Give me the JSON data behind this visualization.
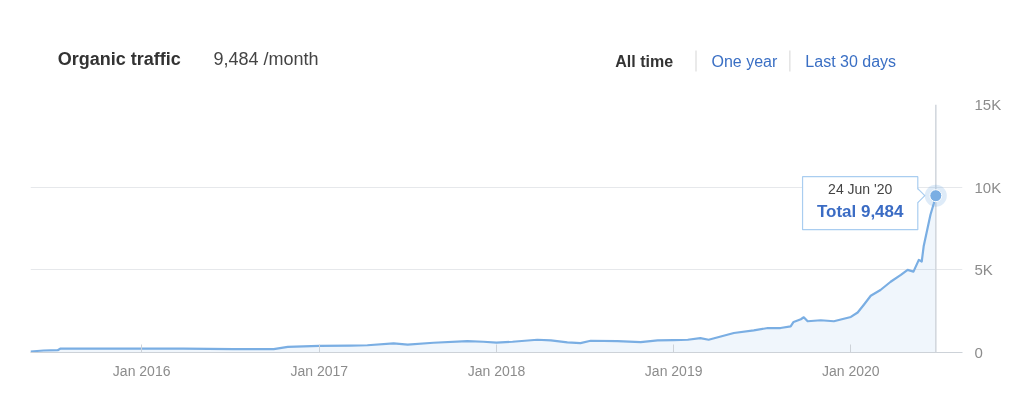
{
  "chart_data": {
    "type": "area",
    "title": "Organic traffic",
    "subtitle": "9,484 /month",
    "annotations": [
      "All time",
      "One year",
      "Last 30 days",
      "24 Jun '20",
      {
        "text": "Total 9,484",
        "x": "2020-06-24",
        "y": 9484
      }
    ],
    "x": [
      "2015-05-17",
      "2015-06-13",
      "2015-07-12",
      "2015-07-18",
      "2015-10-09",
      "2016-01-01",
      "2016-03-27",
      "2016-07-08",
      "2016-09-29",
      "2016-10-28",
      "2017-01-01",
      "2017-03-06",
      "2017-04-10",
      "2017-06-03",
      "2017-07-02",
      "2017-08-24",
      "2017-11-02",
      "2017-12-05",
      "2018-01-01",
      "2018-02-03",
      "2018-03-26",
      "2018-04-23",
      "2018-05-27",
      "2018-06-23",
      "2018-07-14",
      "2018-09-07",
      "2018-10-25",
      "2018-11-29",
      "2019-01-01",
      "2019-01-30",
      "2019-02-25",
      "2019-03-14",
      "2019-04-08",
      "2019-05-05",
      "2019-06-15",
      "2019-07-14",
      "2019-08-09",
      "2019-08-30",
      "2019-09-05",
      "2019-09-20",
      "2019-09-26",
      "2019-10-04",
      "2019-10-31",
      "2019-11-27",
      "2020-01-01",
      "2020-01-15",
      "2020-01-27",
      "2020-02-11",
      "2020-03-02",
      "2020-03-23",
      "2020-04-13",
      "2020-04-27",
      "2020-05-09",
      "2020-05-20",
      "2020-05-26",
      "2020-05-30",
      "2020-06-07",
      "2020-06-13",
      "2020-06-20",
      "2020-06-24"
    ],
    "series": [
      {
        "color": "#7aaee3",
        "values": [
          60,
          120,
          140,
          240,
          240,
          240,
          240,
          200,
          200,
          340,
          400,
          420,
          440,
          550,
          480,
          590,
          690,
          650,
          600,
          650,
          770,
          730,
          610,
          570,
          710,
          690,
          630,
          730,
          750,
          770,
          870,
          770,
          970,
          1180,
          1340,
          1480,
          1480,
          1580,
          1850,
          2010,
          2130,
          1890,
          1950,
          1890,
          2150,
          2420,
          2860,
          3430,
          3780,
          4280,
          4690,
          5000,
          4890,
          5600,
          5500,
          6420,
          7510,
          8330,
          9030,
          9484
        ]
      }
    ],
    "xlim": [
      "2015-05-17",
      "2020-08-18"
    ],
    "xticks": [
      {
        "value": "2016-01-01",
        "label": "Jan 2016"
      },
      {
        "value": "2017-01-01",
        "label": "Jan 2017"
      },
      {
        "value": "2018-01-01",
        "label": "Jan 2018"
      },
      {
        "value": "2019-01-01",
        "label": "Jan 2019"
      },
      {
        "value": "2020-01-01",
        "label": "Jan 2020"
      }
    ],
    "ylim": [
      0,
      15000
    ],
    "yticks": [
      0,
      {
        "value": 5000,
        "label": "5K"
      },
      {
        "value": 10000,
        "label": "10K"
      },
      {
        "value": 15000,
        "label": "15K"
      }
    ],
    "grid": "y"
  }
}
